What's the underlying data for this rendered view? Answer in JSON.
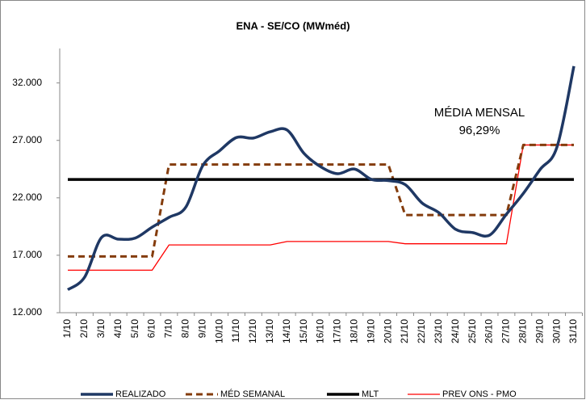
{
  "chart_data": {
    "type": "line",
    "title": "ENA - SE/CO (MWméd)",
    "categories": [
      "1/10",
      "2/10",
      "3/10",
      "4/10",
      "5/10",
      "6/10",
      "7/10",
      "8/10",
      "9/10",
      "10/10",
      "11/10",
      "12/10",
      "13/10",
      "14/10",
      "15/10",
      "16/10",
      "17/10",
      "18/10",
      "19/10",
      "20/10",
      "21/10",
      "22/10",
      "23/10",
      "24/10",
      "25/10",
      "26/10",
      "27/10",
      "28/10",
      "29/10",
      "30/10",
      "31/10"
    ],
    "series": [
      {
        "name": "REALIZADO",
        "color": "#1f3864",
        "line_style": "smooth",
        "values": [
          14000,
          15100,
          18550,
          18400,
          18500,
          19450,
          20300,
          21200,
          24800,
          26100,
          27250,
          27200,
          27750,
          27900,
          25870,
          24700,
          24100,
          24500,
          23600,
          23500,
          23150,
          21550,
          20700,
          19250,
          18970,
          18750,
          20570,
          22380,
          24470,
          26430,
          33460
        ]
      },
      {
        "name": "MÉD SEMANAL",
        "color": "#843c0c",
        "line_style": "dashed",
        "values": [
          16900,
          16900,
          16900,
          16900,
          16900,
          16900,
          24900,
          24900,
          24900,
          24900,
          24900,
          24900,
          24900,
          24900,
          24900,
          24900,
          24900,
          24900,
          24900,
          24900,
          20500,
          20500,
          20500,
          20500,
          20500,
          20500,
          20500,
          26600,
          26600,
          26600,
          26600
        ]
      },
      {
        "name": "MLT",
        "color": "#000000",
        "line_style": "solid",
        "values": [
          23600,
          23600,
          23600,
          23600,
          23600,
          23600,
          23600,
          23600,
          23600,
          23600,
          23600,
          23600,
          23600,
          23600,
          23600,
          23600,
          23600,
          23600,
          23600,
          23600,
          23600,
          23600,
          23600,
          23600,
          23600,
          23600,
          23600,
          23600,
          23600,
          23600,
          23600
        ]
      },
      {
        "name": "PREV ONS - PMO",
        "color": "#ff0000",
        "line_style": "thin",
        "values": [
          15700,
          15700,
          15700,
          15700,
          15700,
          15700,
          17900,
          17900,
          17900,
          17900,
          17900,
          17900,
          17900,
          18200,
          18200,
          18200,
          18200,
          18200,
          18200,
          18200,
          18000,
          18000,
          18000,
          18000,
          18000,
          18000,
          18000,
          26600,
          26600,
          26600,
          26600
        ]
      }
    ],
    "ylim": [
      12000,
      35000
    ],
    "yticks": [
      {
        "value": 12000,
        "label": "12.000"
      },
      {
        "value": 17000,
        "label": "17.000"
      },
      {
        "value": 22000,
        "label": "22.000"
      },
      {
        "value": 27000,
        "label": "27.000"
      },
      {
        "value": 32000,
        "label": "32.000"
      }
    ],
    "grid": false,
    "legend": "bottom",
    "annotations": [
      "MÉDIA MENSAL",
      "96,29%"
    ]
  }
}
